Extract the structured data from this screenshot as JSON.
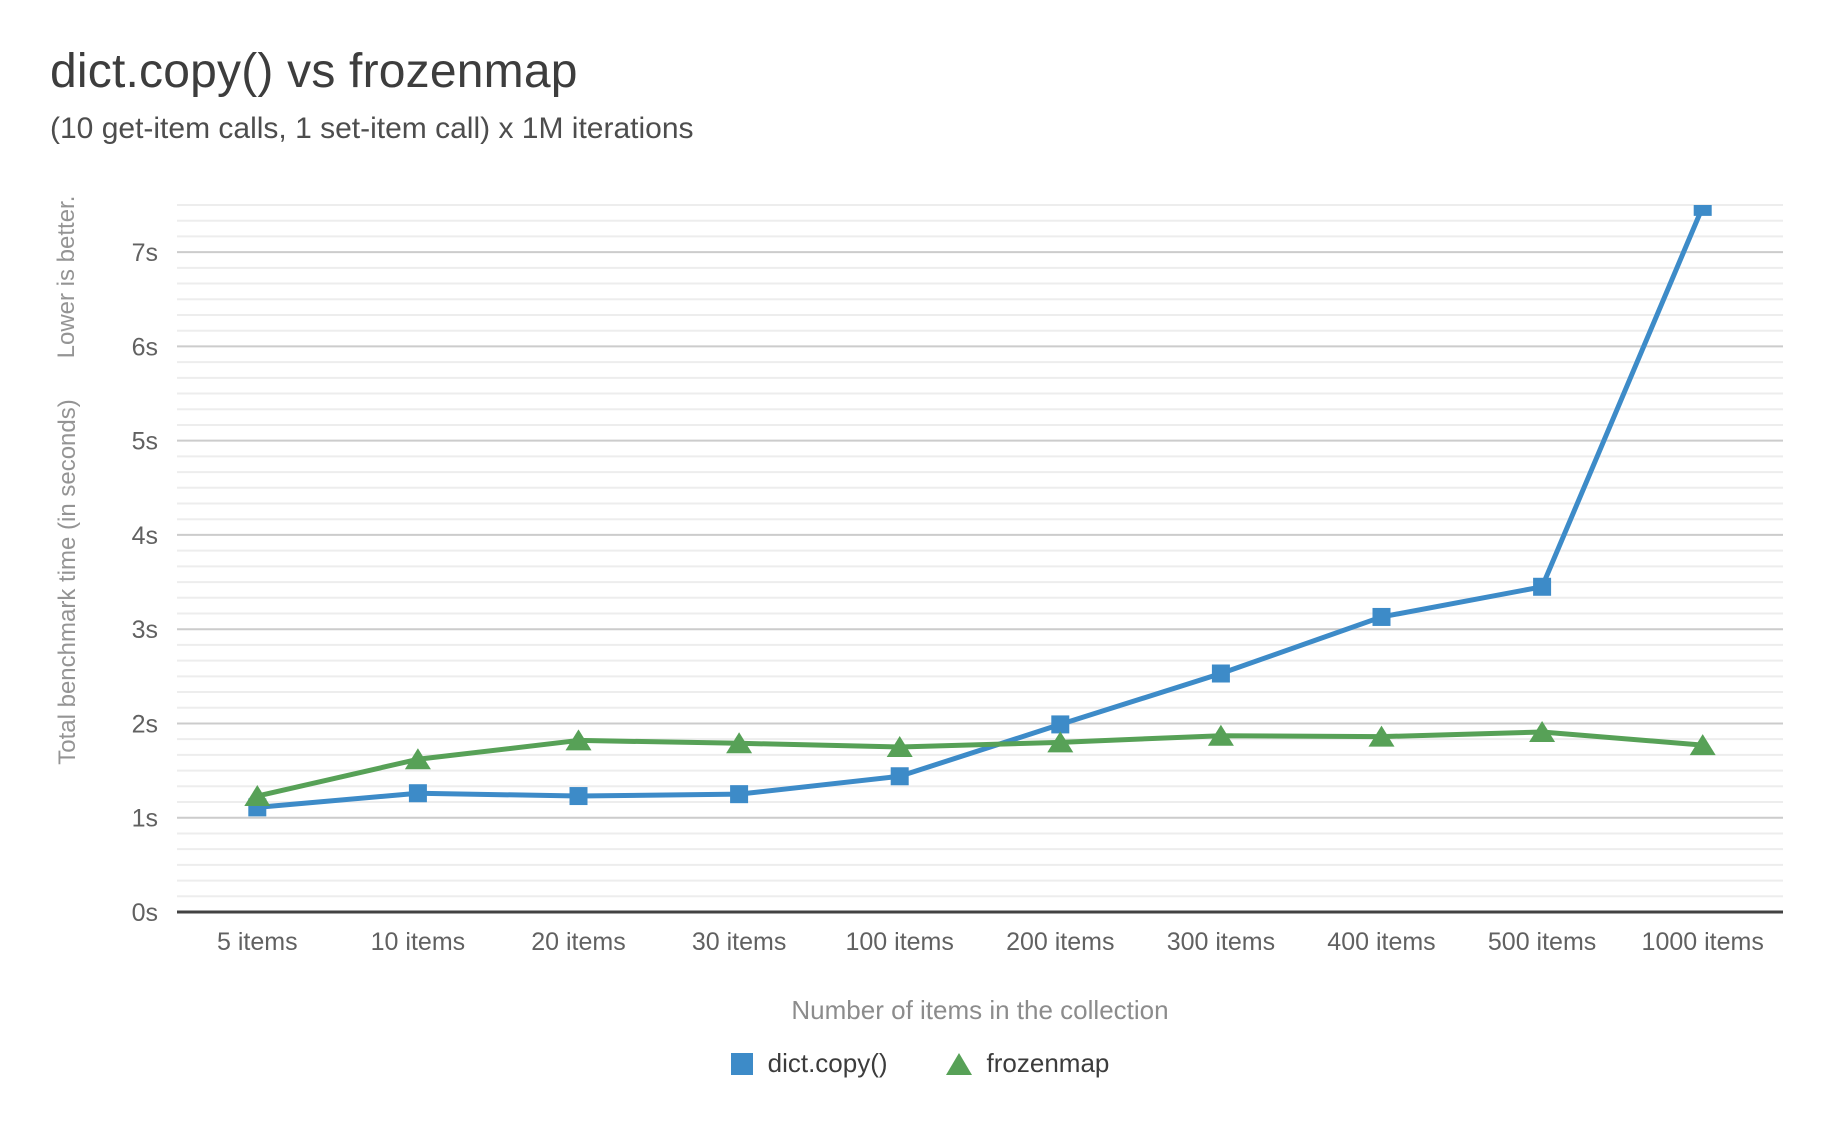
{
  "header": {
    "title": "dict.copy() vs frozenmap",
    "subtitle": "(10 get-item calls, 1 set-item call) x 1M iterations"
  },
  "chart_data": {
    "type": "line",
    "categories": [
      "5 items",
      "10 items",
      "20 items",
      "30 items",
      "100 items",
      "200 items",
      "300 items",
      "400 items",
      "500 items",
      "1000 items"
    ],
    "series": [
      {
        "name": "dict.copy()",
        "color": "#3d8bc8",
        "marker": "square",
        "values": [
          1.11,
          1.26,
          1.23,
          1.25,
          1.44,
          1.99,
          2.53,
          3.13,
          3.45,
          7.48
        ]
      },
      {
        "name": "frozenmap",
        "color": "#57a157",
        "marker": "triangle",
        "values": [
          1.23,
          1.62,
          1.82,
          1.79,
          1.75,
          1.8,
          1.87,
          1.86,
          1.91,
          1.77
        ]
      }
    ],
    "title": "dict.copy() vs frozenmap",
    "subtitle": "(10 get-item calls, 1 set-item call) x 1M iterations",
    "xlabel": "Number of items in the collection",
    "ylabel": "Total benchmark time (in seconds)",
    "ylabel_note": "Lower is better.",
    "ylim": [
      0,
      7.5
    ],
    "ytick_step": 1,
    "ytick_suffix": "s",
    "minor_divisions_per_major": 6,
    "grid": "horizontal",
    "legend_position": "bottom"
  },
  "colors": {
    "major_gridline": "#cccccc",
    "minor_gridline": "#ededed",
    "axis_line": "#424242",
    "tick_label": "#616161"
  }
}
